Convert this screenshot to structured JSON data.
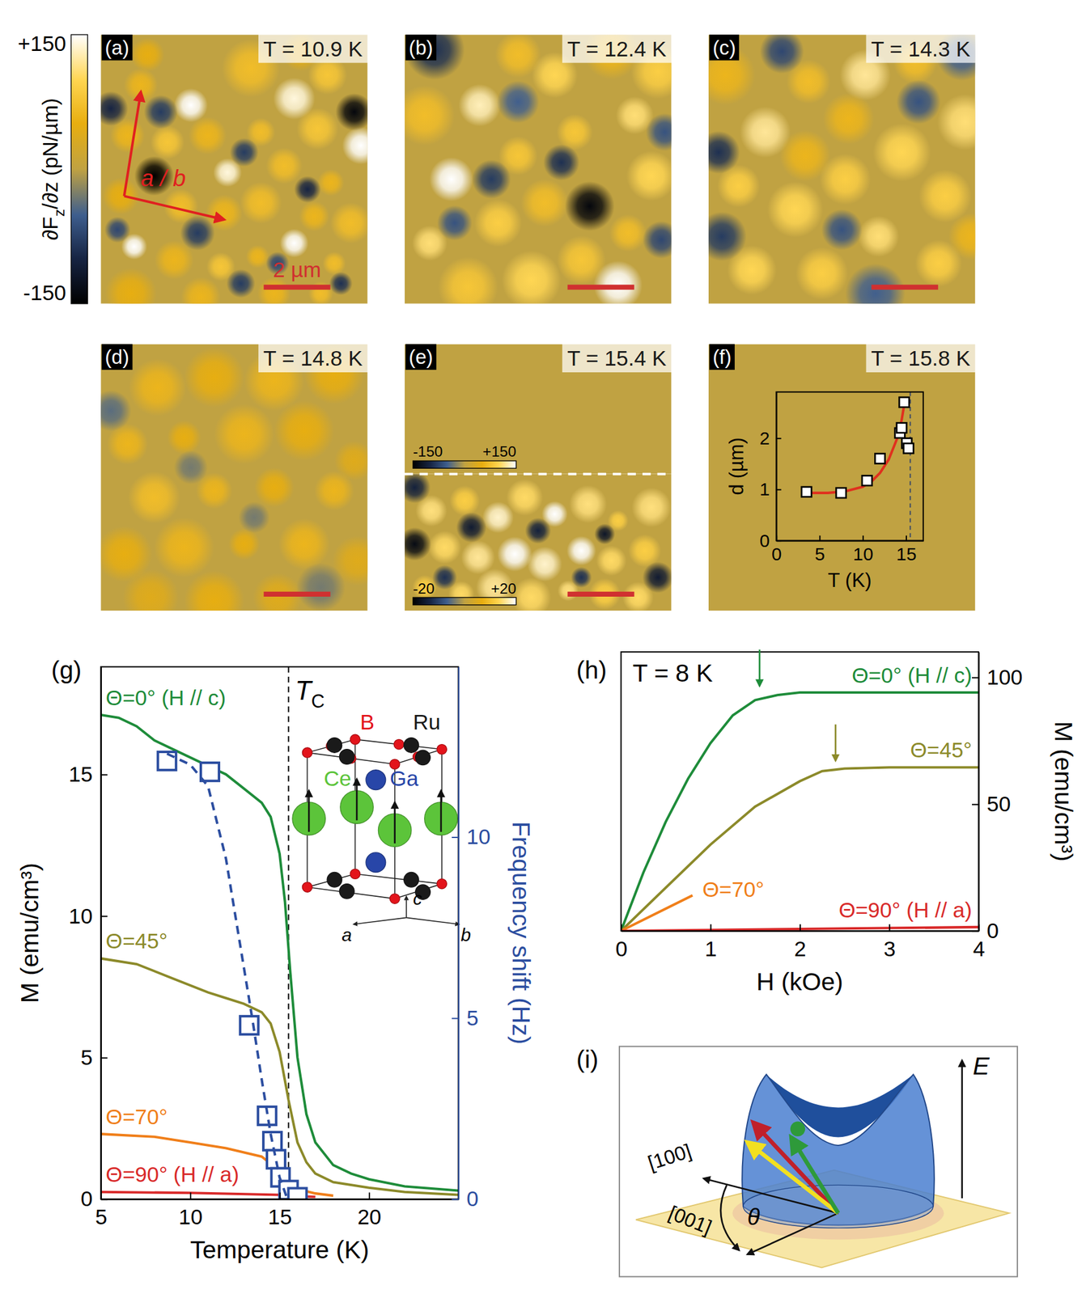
{
  "chart_data": [
    {
      "type": "image",
      "panel": "(a)",
      "title": "T = 10.9 K",
      "xlim": [
        0,
        8
      ],
      "ylim": [
        0,
        8
      ],
      "tick_labels": false,
      "colorbar": {
        "label": {
          "text": "∂F",
          "sub": "z",
          "rest": "/∂z (pN/µm)"
        },
        "range": [
          -150,
          150
        ],
        "ticks": [
          {
            "value": 150,
            "label": "+150"
          },
          -150
        ]
      },
      "scale_bar": {
        "value": 2,
        "label": "2 µm"
      },
      "axes_label": "a / b",
      "spots": {
        "x": [
          2.7,
          5.8,
          7.8,
          3.8,
          1.0,
          5.8,
          1.2,
          4.5,
          6.8,
          0.8,
          2.0,
          3.2,
          4.8,
          6.5,
          5.5,
          6.9,
          0.6,
          2.4,
          3.7,
          4.8,
          6.4,
          7.5,
          2.2,
          3.6,
          4.7,
          7.0,
          0.9,
          3.0,
          5.2,
          6.6,
          1.4,
          6.0,
          1.6,
          7.6,
          4.3,
          1.8,
          5.3,
          6.2,
          2.9,
          7.2,
          0.3,
          4.2,
          0.5
        ],
        "y": [
          2.1,
          1.9,
          3.3,
          4.1,
          6.3,
          6.2,
          1.5,
          1.0,
          1.2,
          3.0,
          3.2,
          3.0,
          2.9,
          2.8,
          3.9,
          4.4,
          4.8,
          5.1,
          5.3,
          5.0,
          5.4,
          5.6,
          6.7,
          6.9,
          6.6,
          6.8,
          7.7,
          7.8,
          7.7,
          7.7,
          0.6,
          0.5,
          4.2,
          2.3,
          3.5,
          2.3,
          6.8,
          4.6,
          5.9,
          7.4,
          2.2,
          7.4,
          5.8
        ],
        "values": [
          150,
          140,
          150,
          140,
          150,
          150,
          60,
          70,
          80,
          60,
          80,
          60,
          70,
          80,
          70,
          60,
          50,
          70,
          60,
          70,
          60,
          70,
          60,
          80,
          60,
          70,
          50,
          60,
          60,
          70,
          50,
          50,
          -150,
          -140,
          -80,
          -80,
          -70,
          -100,
          -80,
          -90,
          -100,
          -80,
          -70
        ]
      }
    },
    {
      "type": "image",
      "panel": "(b)",
      "title": "T = 12.4 K",
      "xlim": [
        0,
        8
      ],
      "ylim": [
        0,
        8
      ],
      "tick_labels": false,
      "scale_bar": {
        "value": 2
      },
      "spots": {
        "x": [
          1.4,
          2.25,
          0.75,
          6.4,
          4.5,
          5.1,
          6.9,
          7.6,
          3.4,
          2.8,
          4.2,
          7.4,
          6.7,
          1.9,
          3.8,
          5.3,
          0.6,
          3.4,
          6.2,
          5.55,
          0.9,
          2.6,
          4.7,
          7.7,
          1.5,
          3.4,
          7.8
        ],
        "y": [
          4.3,
          2.1,
          6.2,
          7.45,
          1.2,
          2.9,
          2.4,
          1.1,
          3.6,
          5.6,
          5.0,
          4.2,
          5.9,
          7.5,
          7.3,
          6.7,
          2.4,
          0.6,
          0.5,
          5.1,
          0.45,
          4.3,
          3.8,
          6.1,
          5.6,
          2.0,
          2.9
        ],
        "values": [
          150,
          130,
          110,
          150,
          100,
          80,
          110,
          90,
          80,
          90,
          70,
          100,
          70,
          80,
          100,
          80,
          70,
          70,
          60,
          -140,
          -90,
          -80,
          -90,
          -70,
          -60,
          -50,
          -60
        ]
      }
    },
    {
      "type": "image",
      "panel": "(c)",
      "title": "T = 14.3 K",
      "xlim": [
        0,
        8
      ],
      "ylim": [
        0,
        8
      ],
      "tick_labels": false,
      "scale_bar": {
        "value": 2
      },
      "spots": {
        "x": [
          1.7,
          4.7,
          7.7,
          0.9,
          2.6,
          4.1,
          5.8,
          7.1,
          1.3,
          3.4,
          5.1,
          6.9,
          3.0,
          6.2,
          0.5,
          2.9,
          4.2,
          7.9,
          0.3,
          0.4,
          2.2,
          6.3,
          4.0,
          7.6,
          5.0
        ],
        "y": [
          2.9,
          1.2,
          2.6,
          4.5,
          5.2,
          4.3,
          3.5,
          4.8,
          7.0,
          7.1,
          6.0,
          6.8,
          1.4,
          0.8,
          1.2,
          3.6,
          2.5,
          6.0,
          3.5,
          6.0,
          0.5,
          2.0,
          5.8,
          0.6,
          7.7
        ],
        "values": [
          120,
          120,
          110,
          90,
          100,
          90,
          100,
          90,
          100,
          90,
          110,
          90,
          70,
          70,
          60,
          60,
          60,
          60,
          -90,
          -80,
          -70,
          -60,
          -60,
          -50,
          -50
        ]
      }
    },
    {
      "type": "image",
      "panel": "(d)",
      "title": "T = 14.8 K",
      "xlim": [
        0,
        8
      ],
      "ylim": [
        0,
        8
      ],
      "tick_labels": false,
      "scale_bar": {
        "value": 2
      },
      "spots": {
        "x": [
          1.7,
          3.4,
          5.2,
          7.0,
          0.8,
          2.5,
          4.3,
          6.1,
          7.6,
          1.6,
          3.4,
          5.2,
          7.0,
          0.7,
          2.5,
          4.3,
          6.1,
          7.7,
          1.5,
          3.4,
          5.3,
          0.3,
          2.7,
          4.6,
          6.6
        ],
        "y": [
          1.3,
          1.0,
          1.1,
          0.9,
          3.0,
          2.8,
          2.7,
          2.6,
          3.5,
          4.6,
          4.4,
          4.3,
          4.4,
          6.3,
          6.1,
          6.0,
          6.0,
          6.5,
          7.6,
          7.7,
          7.6,
          2.0,
          3.7,
          5.2,
          7.3
        ],
        "values": [
          60,
          50,
          60,
          50,
          60,
          50,
          60,
          50,
          40,
          70,
          60,
          50,
          60,
          50,
          60,
          50,
          60,
          40,
          40,
          50,
          40,
          -40,
          -30,
          -30,
          -30
        ]
      }
    },
    {
      "type": "image",
      "panel": "(e)",
      "title": "T = 15.4 K",
      "xlim": [
        0,
        8
      ],
      "ylim": [
        0,
        8
      ],
      "tick_labels": false,
      "scale_bar": {
        "value": 2
      },
      "divider_y": 3.9,
      "colorbars": [
        {
          "range": [
            -150,
            150
          ],
          "ticks": [
            -150,
            {
              "value": 150,
              "label": "+150"
            }
          ]
        },
        {
          "range": [
            -20,
            20
          ],
          "ticks": [
            -20,
            {
              "value": 20,
              "label": "+20"
            }
          ]
        }
      ],
      "spots": {
        "x": [
          0.8,
          1.8,
          2.8,
          3.6,
          4.5,
          5.5,
          6.4,
          7.4,
          1.2,
          2.2,
          3.3,
          4.2,
          5.3,
          6.2,
          7.2,
          0.6,
          1.7,
          2.7,
          3.8,
          4.9,
          6.0,
          7.0,
          0.3,
          2.0,
          4.0,
          6.0,
          7.6,
          1.2,
          0.3,
          5.3
        ],
        "y": [
          5.0,
          4.7,
          5.2,
          4.6,
          5.1,
          4.8,
          5.3,
          4.9,
          6.1,
          6.4,
          6.3,
          6.6,
          6.2,
          6.5,
          6.2,
          7.3,
          7.5,
          7.3,
          7.6,
          7.4,
          7.5,
          7.6,
          6.0,
          5.5,
          5.6,
          5.7,
          7.0,
          7.0,
          4.3,
          7.0
        ],
        "values": [
          15,
          12,
          18,
          14,
          20,
          15,
          12,
          15,
          14,
          16,
          20,
          18,
          20,
          14,
          12,
          12,
          14,
          16,
          14,
          15,
          12,
          14,
          -18,
          -15,
          -14,
          -16,
          -15,
          -12,
          -14,
          -12
        ]
      }
    },
    {
      "type": "image",
      "panel": "(f)",
      "title": "T = 15.8 K",
      "xlim": [
        0,
        8
      ],
      "ylim": [
        0,
        8
      ],
      "tick_labels": false,
      "inset": {
        "type": "scatter",
        "marker": "square",
        "xlabel": "T (K)",
        "ylabel": "d (µm)",
        "xlim": [
          0,
          17
        ],
        "ylim": [
          0,
          2.9
        ],
        "xticks": [
          0,
          5,
          10,
          15
        ],
        "yticks": [
          0,
          1,
          2
        ],
        "x": [
          3.5,
          7.5,
          10.5,
          12.0,
          14.3,
          14.5,
          14.8,
          15.1,
          15.3
        ],
        "values": [
          0.95,
          0.93,
          1.17,
          1.6,
          2.1,
          2.2,
          2.7,
          1.9,
          1.8
        ],
        "fit": {
          "color": "#e0301e",
          "x": [
            3.5,
            6,
            8,
            10,
            11,
            12,
            13,
            14,
            14.5,
            14.9
          ],
          "values": [
            0.93,
            0.93,
            0.96,
            1.05,
            1.15,
            1.32,
            1.58,
            2.0,
            2.35,
            2.75
          ]
        },
        "tc_line": {
          "x": 15.5
        }
      }
    },
    {
      "type": "line",
      "panel": "(g)",
      "xlabel": "Temperature (K)",
      "ylabel": "M (emu/cm³)",
      "y2label": "Frequency shift (Hz)",
      "xlim": [
        5,
        25
      ],
      "xticks": [
        5,
        10,
        15,
        20
      ],
      "ylim": [
        0,
        18.8
      ],
      "yticks": [
        0,
        5,
        10,
        15
      ],
      "y2lim": [
        0,
        14.7
      ],
      "y2ticks": [
        0,
        5,
        10
      ],
      "tc_line": {
        "x": 15.5,
        "label": {
          "text": "T",
          "sub": "C"
        }
      },
      "series": [
        {
          "name": "Θ=0° (H // c)",
          "color": "#1e8c3a",
          "x": [
            5,
            6,
            7,
            8,
            9,
            10,
            11,
            12,
            13,
            14,
            14.5,
            15,
            15.3,
            15.6,
            16,
            16.5,
            17,
            18,
            19,
            20,
            22,
            25
          ],
          "values": [
            17.1,
            17.0,
            16.7,
            16.2,
            15.9,
            15.6,
            15.3,
            15.0,
            14.5,
            14.0,
            13.5,
            12.2,
            10.5,
            8.0,
            5.0,
            3.0,
            2.0,
            1.2,
            0.9,
            0.7,
            0.45,
            0.3
          ]
        },
        {
          "name": "Θ=45°",
          "color": "#8c8a2a",
          "x": [
            5,
            7,
            9,
            11,
            12,
            13,
            14,
            14.5,
            15,
            15.5,
            16,
            16.5,
            17,
            18,
            20,
            22,
            25
          ],
          "values": [
            8.5,
            8.3,
            7.8,
            7.3,
            7.1,
            6.9,
            6.6,
            6.2,
            5.2,
            3.5,
            2.0,
            1.3,
            0.9,
            0.6,
            0.4,
            0.25,
            0.15
          ]
        },
        {
          "name": "Θ=70°",
          "color": "#f07f1a",
          "x": [
            5,
            8,
            10,
            12,
            14,
            15,
            15.5,
            16,
            17,
            18
          ],
          "values": [
            2.3,
            2.2,
            2.0,
            1.8,
            1.5,
            1.0,
            0.6,
            0.35,
            0.2,
            0.12
          ]
        },
        {
          "name": "Θ=90° (H // a)",
          "color": "#d92a2a",
          "x": [
            5,
            10,
            15,
            16,
            17
          ],
          "values": [
            0.25,
            0.22,
            0.15,
            0.1,
            0.08
          ]
        },
        {
          "type": "scatter",
          "marker": "square",
          "axis": "y2",
          "color": "#2c4ea0",
          "x": [
            8.7,
            11.1,
            13.3,
            14.3,
            14.6,
            14.8,
            15.05,
            15.5,
            16.0
          ],
          "values": [
            12.1,
            11.8,
            4.8,
            2.3,
            1.6,
            1.1,
            0.6,
            0.25,
            0.05
          ]
        },
        {
          "type": "line",
          "line_style": "dashed",
          "axis": "y2",
          "color": "#2c4ea0",
          "x": [
            8.7,
            10,
            11,
            12,
            13,
            13.5,
            14,
            14.5,
            15,
            15.4
          ],
          "values": [
            12.3,
            12.0,
            11.4,
            9.4,
            6.4,
            4.9,
            3.3,
            1.8,
            0.6,
            0.05
          ]
        }
      ],
      "inset": {
        "type": "diagram",
        "atoms": [
          {
            "label": "B",
            "color": "#e3141b"
          },
          {
            "label": "Ru",
            "color": "#1a1a1a"
          },
          {
            "label": "Ce",
            "color": "#5cc43a"
          },
          {
            "label": "Ga",
            "color": "#2846a8"
          }
        ],
        "axes": [
          "a",
          "b",
          "c"
        ]
      }
    },
    {
      "type": "line",
      "panel": "(h)",
      "title": "T = 8 K",
      "xlabel": "H (kOe)",
      "ylabel": "M (emu/cm³)",
      "xlim": [
        0,
        4
      ],
      "xticks": [
        0,
        1,
        2,
        3,
        4
      ],
      "ylim": [
        0,
        110
      ],
      "yticks": [
        0,
        50,
        100
      ],
      "series": [
        {
          "name": "Θ=0° (H // c)",
          "color": "#1e8c3a",
          "saturation_field": 1.55,
          "x": [
            0,
            0.25,
            0.5,
            0.75,
            1,
            1.25,
            1.5,
            1.75,
            2,
            2.5,
            3,
            4
          ],
          "values": [
            0,
            23,
            43,
            60,
            74,
            85,
            91,
            93,
            94,
            94,
            94,
            94
          ]
        },
        {
          "name": "Θ=45°",
          "color": "#8c8a2a",
          "saturation_field": 2.4,
          "x": [
            0,
            0.5,
            1,
            1.5,
            2,
            2.25,
            2.5,
            3,
            4
          ],
          "values": [
            0,
            17,
            34,
            49,
            59,
            63,
            64,
            64.5,
            64.5
          ]
        },
        {
          "name": "Θ=70°",
          "color": "#f07f1a",
          "x": [
            0,
            0.4,
            0.8
          ],
          "values": [
            0,
            7,
            14
          ]
        },
        {
          "name": "Θ=90° (H // a)",
          "color": "#d92a2a",
          "x": [
            0,
            4
          ],
          "values": [
            0,
            1.5
          ]
        }
      ]
    },
    {
      "type": "diagram",
      "panel": "(i)",
      "axis_labels": [
        "[100]",
        "[001]"
      ],
      "angle_label": "θ",
      "energy_label": "E"
    }
  ]
}
